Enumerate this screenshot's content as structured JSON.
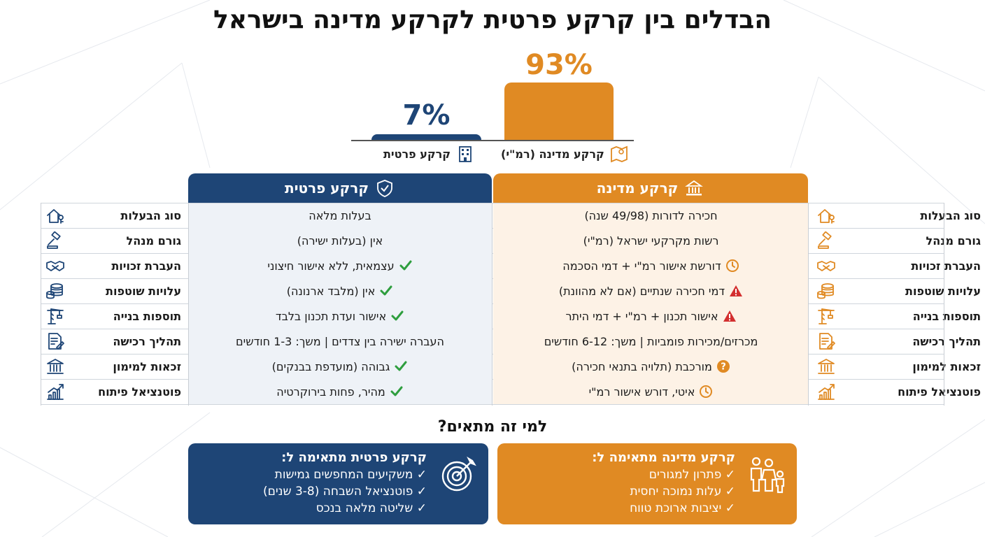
{
  "title": "הבדלים בין קרקע פרטית לקרקע מדינה בישראל",
  "chart_data": {
    "type": "bar",
    "categories": [
      "קרקע מדינה (רמ\"י)",
      "קרקע פרטית"
    ],
    "values": [
      93,
      7
    ],
    "value_labels": [
      "93%",
      "7%"
    ],
    "colors": [
      "#e08a23",
      "#1e4576"
    ],
    "ylim": [
      0,
      100
    ]
  },
  "table": {
    "state_header": "קרקע מדינה",
    "private_header": "קרקע פרטית",
    "rows": [
      {
        "label": "סוג הבעלות",
        "state": "חכירה לדורות (49/98 שנה)",
        "state_mark": "",
        "private": "בעלות מלאה",
        "private_mark": ""
      },
      {
        "label": "גורם מנהל",
        "state": "רשות מקרקעי ישראל (רמ\"י)",
        "state_mark": "",
        "private": "אין (בעלות ישירה)",
        "private_mark": ""
      },
      {
        "label": "העברת זכויות",
        "state": "דורשת אישור רמ\"י + דמי הסכמה",
        "state_mark": "clock",
        "private": "עצמאית, ללא אישור חיצוני",
        "private_mark": "check"
      },
      {
        "label": "עלויות שוטפות",
        "state": "דמי חכירה שנתיים (אם לא מהוונת)",
        "state_mark": "warning",
        "private": "אין (מלבד ארנונה)",
        "private_mark": "check"
      },
      {
        "label": "תוספות בנייה",
        "state": "אישור תכנון + רמ\"י + דמי היתר",
        "state_mark": "warning",
        "private": "אישור ועדת תכנון בלבד",
        "private_mark": "check"
      },
      {
        "label": "תהליך רכישה",
        "state": "מכרזים/מכירות פומביות | משך: 6-12 חודשים",
        "state_mark": "",
        "private": "העברה ישירה בין צדדים | משך: 1-3 חודשים",
        "private_mark": ""
      },
      {
        "label": "זכאות למימון",
        "state": "מורכבת (תלויה בתנאי חכירה)",
        "state_mark": "question",
        "private": "גבוהה (מועדפת בבנקים)",
        "private_mark": "check"
      },
      {
        "label": "פוטנציאל פיתוח",
        "state": "איטי, דורש אישור רמ\"י",
        "state_mark": "clock",
        "private": "מהיר, פחות בירוקרטיה",
        "private_mark": "check"
      }
    ]
  },
  "who": {
    "title": "למי זה מתאים?",
    "state_card": {
      "title": "קרקע מדינה מתאימה ל:",
      "items": [
        "✓ פתרון למגורים",
        "✓ עלות נמוכה יחסית",
        "✓ יציבות ארוכת טווח"
      ]
    },
    "private_card": {
      "title": "קרקע פרטית מתאימה ל:",
      "items": [
        "✓ משקיעים המחפשים גמישות",
        "✓ פוטנציאל השבחה (3-8 שנים)",
        "✓ שליטה מלאה בנכס"
      ]
    }
  },
  "icons": {
    "bar_state": "map-icon",
    "bar_private": "building-icon",
    "state_header": "government-building-icon",
    "private_header": "shield-icon",
    "row_icons": [
      "house-key-icon",
      "gavel-icon",
      "handshake-icon",
      "coins-icon",
      "crane-icon",
      "document-icon",
      "bank-icon",
      "growth-chart-icon"
    ],
    "state_card": "family-icon",
    "private_card": "target-icon"
  },
  "colors": {
    "state": "#e08a23",
    "private": "#1e4576",
    "check": "#2e9e3e",
    "warning": "#d32f2f",
    "clock": "#e08a23"
  }
}
